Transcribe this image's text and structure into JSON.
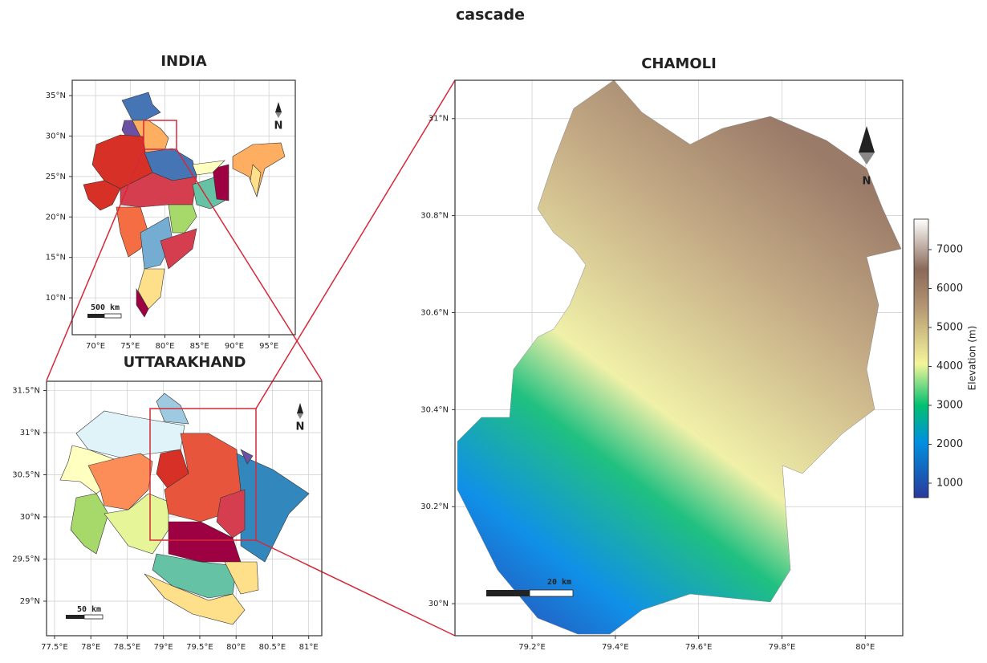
{
  "title": "cascade",
  "panels": [
    {
      "title": "INDIA",
      "xlim": [
        66.64,
        98.8
      ],
      "ylim": [
        5.44,
        36.9
      ],
      "xticks": [
        {
          "value": 70,
          "label": "70°E"
        },
        {
          "value": 75,
          "label": "75°E"
        },
        {
          "value": 80,
          "label": "80°E"
        },
        {
          "value": 85,
          "label": "85°E"
        },
        {
          "value": 90,
          "label": "90°E"
        },
        {
          "value": 95,
          "label": "95°E"
        }
      ],
      "yticks": [
        {
          "value": 10,
          "label": "10°N"
        },
        {
          "value": 15,
          "label": "15°N"
        },
        {
          "value": 20,
          "label": "20°N"
        },
        {
          "value": 25,
          "label": "25°N"
        },
        {
          "value": 30,
          "label": "30°N"
        },
        {
          "value": 35,
          "label": "35°N"
        }
      ],
      "scale_bar": "500 km",
      "north": "N"
    },
    {
      "title": "UTTARAKHAND",
      "xlim": [
        77.39,
        81.18
      ],
      "ylim": [
        28.59,
        31.61
      ],
      "xticks": [
        {
          "value": 77.5,
          "label": "77.5°E"
        },
        {
          "value": 78,
          "label": "78°E"
        },
        {
          "value": 78.5,
          "label": "78.5°E"
        },
        {
          "value": 79,
          "label": "79°E"
        },
        {
          "value": 79.5,
          "label": "79.5°E"
        },
        {
          "value": 80,
          "label": "80°E"
        },
        {
          "value": 80.5,
          "label": "80.5°E"
        },
        {
          "value": 81,
          "label": "81°E"
        }
      ],
      "yticks": [
        {
          "value": 29,
          "label": "29°N"
        },
        {
          "value": 29.5,
          "label": "29.5°N"
        },
        {
          "value": 30,
          "label": "30°N"
        },
        {
          "value": 30.5,
          "label": "30.5°N"
        },
        {
          "value": 31,
          "label": "31°N"
        },
        {
          "value": 31.5,
          "label": "31.5°N"
        }
      ],
      "scale_bar": "50 km",
      "north": "N"
    },
    {
      "title": "CHAMOLI",
      "xlim": [
        79.015,
        80.09
      ],
      "ylim": [
        29.934,
        31.079
      ],
      "xticks": [
        {
          "value": 79.2,
          "label": "79.2°E"
        },
        {
          "value": 79.4,
          "label": "79.4°E"
        },
        {
          "value": 79.6,
          "label": "79.6°E"
        },
        {
          "value": 79.8,
          "label": "79.8°E"
        },
        {
          "value": 80,
          "label": "80°E"
        }
      ],
      "yticks": [
        {
          "value": 30,
          "label": "30°N"
        },
        {
          "value": 30.2,
          "label": "30.2°N"
        },
        {
          "value": 30.4,
          "label": "30.4°N"
        },
        {
          "value": 30.6,
          "label": "30.6°N"
        },
        {
          "value": 30.8,
          "label": "30.8°N"
        },
        {
          "value": 31,
          "label": "31°N"
        }
      ],
      "scale_bar": "20 km",
      "north": "N"
    }
  ],
  "colorbar": {
    "label": "Elevation (m)",
    "lim": [
      629,
      7783
    ],
    "ticks": [
      1000,
      2000,
      3000,
      4000,
      5000,
      6000,
      7000
    ]
  }
}
